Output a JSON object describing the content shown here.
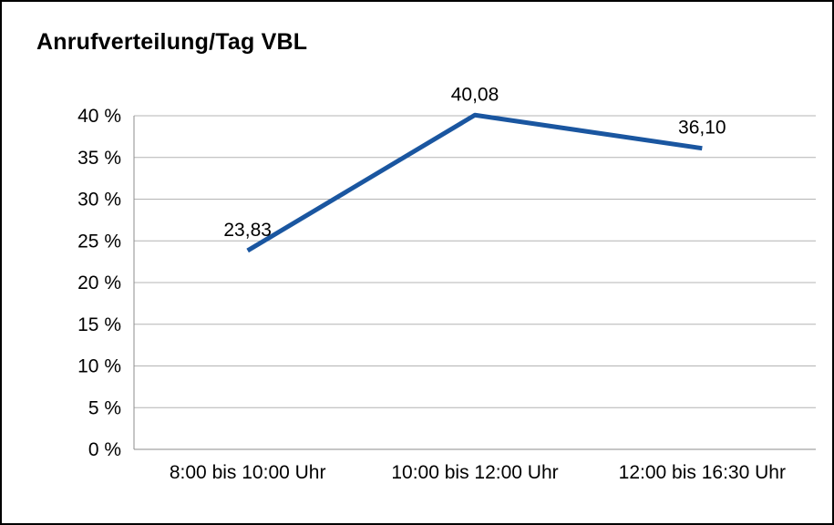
{
  "chart_data": {
    "type": "line",
    "title": "Anrufverteilung/Tag VBL",
    "categories": [
      "8:00 bis 10:00 Uhr",
      "10:00 bis 12:00 Uhr",
      "12:00 bis 16:30 Uhr"
    ],
    "values": [
      23.83,
      40.08,
      36.1
    ],
    "data_labels": [
      "23,83",
      "40,08",
      "36,10"
    ],
    "xlabel": "",
    "ylabel": "",
    "ylim": [
      0,
      40
    ],
    "ytick_step": 5,
    "ytick_labels": [
      "0 %",
      "5 %",
      "10 %",
      "15 %",
      "20 %",
      "25 %",
      "30 %",
      "35 %",
      "40 %"
    ],
    "grid": "horizontal",
    "legend": "none",
    "line_color": "#1A56A0",
    "grid_color": "#b4b4b4",
    "axis_color": "#8c8c8c",
    "text_color": "#000000"
  }
}
